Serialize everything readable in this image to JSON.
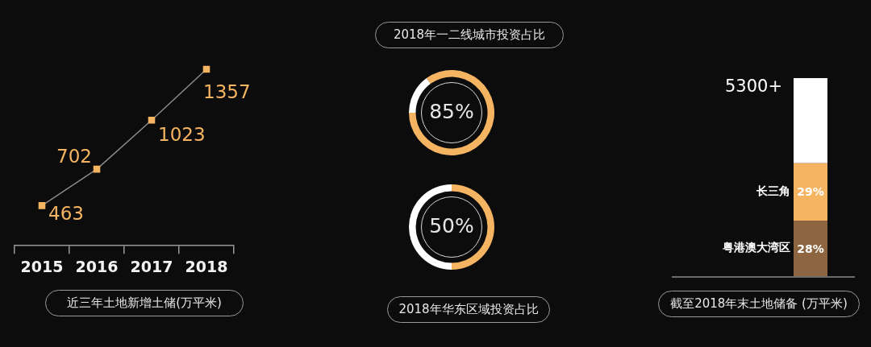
{
  "chart_data": [
    {
      "type": "line",
      "title": "近三年土地新增土储(万平米)",
      "categories": [
        "2015",
        "2016",
        "2017",
        "2018"
      ],
      "series": [
        {
          "color": "#f5b461",
          "values": [
            463,
            702,
            1023,
            1357
          ]
        }
      ],
      "data_labels": true,
      "marker": "square",
      "tick_labels": "x",
      "grid": false
    },
    {
      "type": "donut",
      "title": "2018年一二线城市投资占比",
      "categories": [
        null,
        null
      ],
      "values": [
        85,
        15
      ],
      "colors": [
        "#f5b461",
        "#ffffff"
      ],
      "value_labels": [
        "85%",
        null
      ]
    },
    {
      "type": "donut",
      "title": "2018年华东区域投资占比",
      "categories": [
        null,
        null
      ],
      "values": [
        50,
        50
      ],
      "colors": [
        "#f5b461",
        "#ffffff"
      ],
      "value_labels": [
        "50%",
        null
      ]
    },
    {
      "type": "bar",
      "stacked": true,
      "title": "截至2018年末土地储备 (万平米)",
      "categories": [
        null
      ],
      "series": [
        {
          "name": "粤港澳大湾区",
          "color": "#8d6540",
          "values": [
            28
          ],
          "value_labels": [
            "28%"
          ]
        },
        {
          "name": "长三角",
          "color": "#f5b461",
          "values": [
            29
          ],
          "value_labels": [
            "29%"
          ]
        },
        {
          "color": "#ffffff",
          "values": [
            43
          ]
        }
      ],
      "totals": [
        "5300+"
      ]
    }
  ]
}
